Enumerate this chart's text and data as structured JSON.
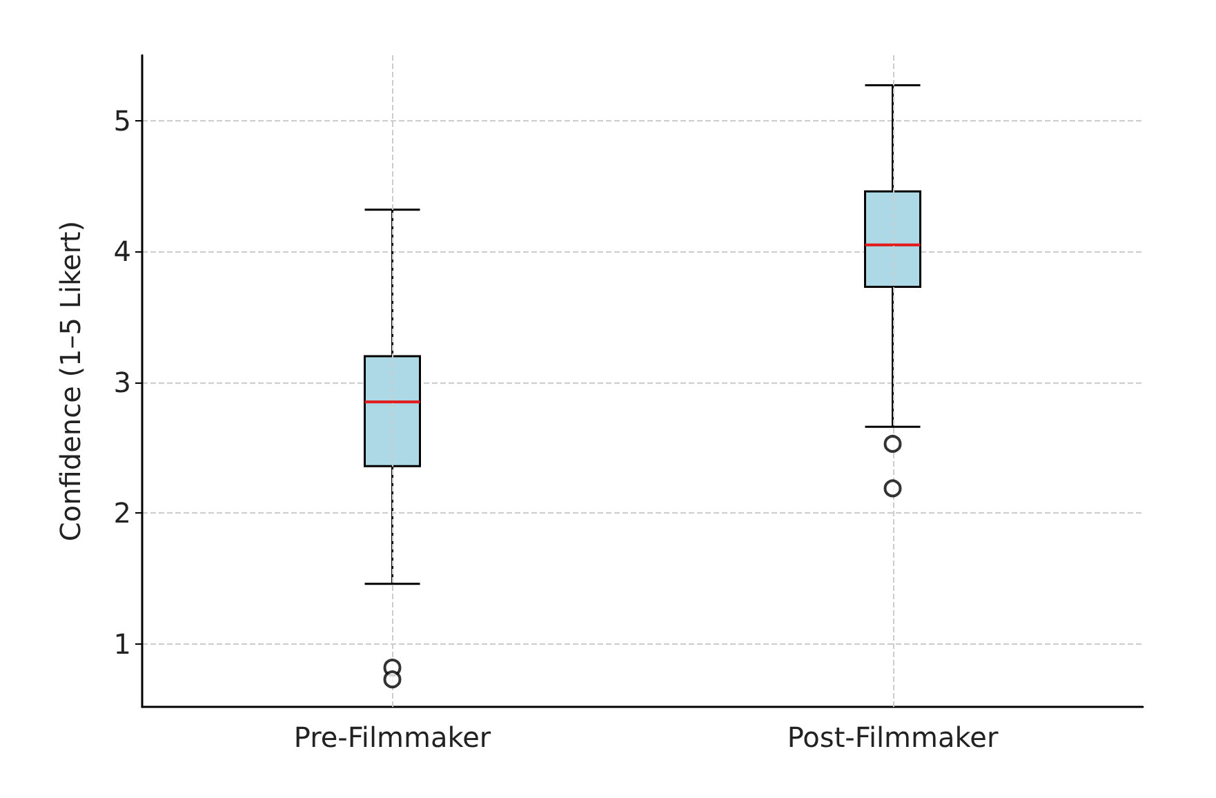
{
  "chart_data": {
    "type": "box",
    "ylabel": "Confidence (1–5 Likert)",
    "categories": [
      "Pre-Filmmaker",
      "Post-Filmmaker"
    ],
    "boxes": [
      {
        "low": 1.46,
        "q1": 2.36,
        "median": 2.85,
        "q3": 3.2,
        "high": 4.32,
        "outliers": [
          0.82,
          0.73
        ]
      },
      {
        "low": 2.66,
        "q1": 3.73,
        "median": 4.05,
        "q3": 4.46,
        "high": 5.27,
        "outliers": [
          2.53,
          2.19
        ]
      }
    ],
    "color": "#add8e6",
    "ylim": [
      0.52,
      5.5
    ],
    "yticks": [
      1,
      2,
      3,
      4,
      5
    ],
    "grid": true
  }
}
